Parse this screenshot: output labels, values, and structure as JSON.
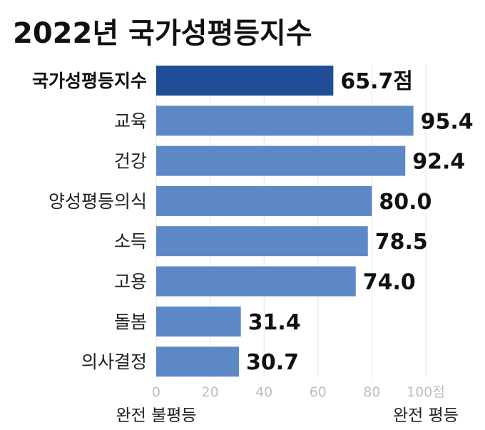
{
  "chart_data": {
    "type": "bar",
    "orientation": "horizontal",
    "title": "2022년 국가성평등지수",
    "categories": [
      "국가성평등지수",
      "교육",
      "건강",
      "양성평등의식",
      "소득",
      "고용",
      "돌봄",
      "의사결정"
    ],
    "values": [
      65.7,
      95.4,
      92.4,
      80.0,
      78.5,
      74.0,
      31.4,
      30.7
    ],
    "value_labels": [
      "65.7점",
      "95.4",
      "92.4",
      "80.0",
      "78.5",
      "74.0",
      "31.4",
      "30.7"
    ],
    "highlight_index": 0,
    "xlim": [
      0,
      100
    ],
    "x_ticks": [
      0,
      20,
      40,
      60,
      80,
      100
    ],
    "x_tick_labels": [
      "0",
      "20",
      "40",
      "60",
      "80",
      "100점"
    ],
    "x_min_label": "완전 불평등",
    "x_max_label": "완전 평등",
    "grid": true,
    "colors": {
      "highlight_bar": "#1f4e96",
      "bar": "#5c88c6"
    }
  }
}
